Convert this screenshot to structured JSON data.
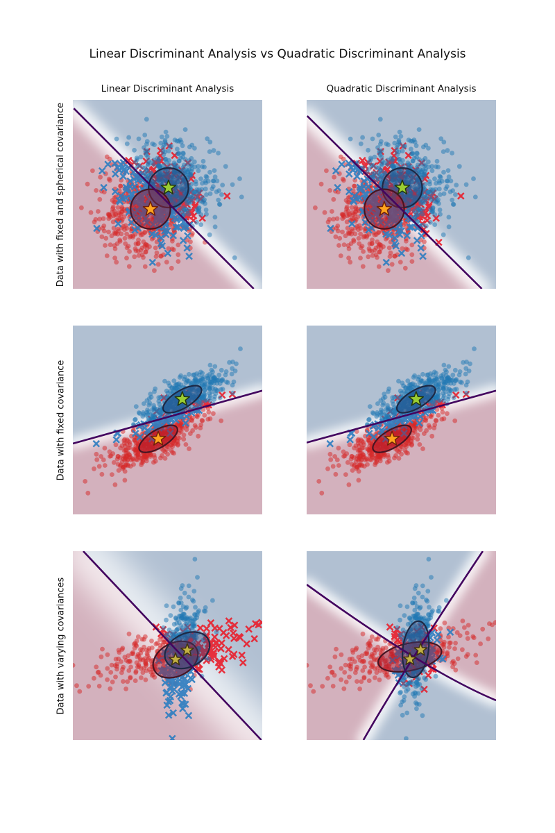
{
  "title": "Linear Discriminant Analysis vs Quadratic Discriminant Analysis",
  "columns": [
    {
      "label": "Linear Discriminant Analysis"
    },
    {
      "label": "Quadratic Discriminant Analysis"
    }
  ],
  "rows": [
    {
      "label": "Data with fixed and spherical covariance"
    },
    {
      "label": "Data with fixed covariance"
    },
    {
      "label": "Data with varying covariances"
    }
  ],
  "palette": {
    "background": "#ffffff",
    "region_blue": "#b1c0d2",
    "region_red": "#d3b1bd",
    "boundary_line": "#43055f",
    "dot_red": "#d62728",
    "dot_blue": "#1f77b4",
    "cross_red": "#e8212e",
    "cross_blue": "#2f7ec0",
    "ellipse_fill_red": "rgba(170,25,45,0.45)",
    "ellipse_fill_blue": "rgba(45,65,120,0.40)",
    "ellipse_edge_red": "#471523",
    "ellipse_edge_blue": "#1d2945",
    "star_green": "#9acd32",
    "star_orange": "#ffa51e",
    "star_khaki": "#c3b143",
    "star_edge_green": "#23380e",
    "star_edge_orange": "#70200a",
    "star_edge_khaki": "#403310"
  },
  "chart_data": [
    {
      "type": "scatter",
      "estimator": "Linear Discriminant Analysis",
      "dataset": "Data with fixed and spherical covariance",
      "classes": [
        {
          "label": "class-red",
          "cls": "red",
          "n": 560,
          "mean": [
            0.41,
            0.578
          ],
          "sd": [
            0.125,
            0.125
          ],
          "angle": 0,
          "seed": 101
        },
        {
          "label": "class-blue",
          "cls": "blue",
          "n": 560,
          "mean": [
            0.505,
            0.465
          ],
          "sd": [
            0.125,
            0.125
          ],
          "angle": 0,
          "seed": 202
        }
      ],
      "boundary": {
        "kind": "line",
        "band": 26,
        "blur": 8,
        "band_opacity": 0.85
      },
      "lines": [
        {
          "p0": [
            0.005,
            0.045
          ],
          "p1": [
            0.955,
            1.0
          ]
        }
      ],
      "red_polys": [
        [
          [
            0,
            0.045
          ],
          [
            0.955,
            1
          ],
          [
            0,
            1
          ]
        ]
      ],
      "ellipses": [
        {
          "cx": 0.505,
          "cy": 0.465,
          "rx": 0.105,
          "ry": 0.105,
          "angle": 0,
          "cls": "blue"
        },
        {
          "cx": 0.41,
          "cy": 0.578,
          "rx": 0.105,
          "ry": 0.105,
          "angle": 0,
          "cls": "red"
        }
      ],
      "stars": [
        {
          "x": 0.505,
          "y": 0.465,
          "color": "green",
          "size": 11
        },
        {
          "x": 0.41,
          "y": 0.578,
          "color": "orange",
          "size": 11
        }
      ]
    },
    {
      "type": "scatter",
      "estimator": "Quadratic Discriminant Analysis",
      "dataset": "Data with fixed and spherical covariance",
      "classes": [
        {
          "label": "class-red",
          "cls": "red",
          "n": 560,
          "mean": [
            0.41,
            0.578
          ],
          "sd": [
            0.125,
            0.125
          ],
          "angle": 0,
          "seed": 101
        },
        {
          "label": "class-blue",
          "cls": "blue",
          "n": 560,
          "mean": [
            0.505,
            0.465
          ],
          "sd": [
            0.125,
            0.125
          ],
          "angle": 0,
          "seed": 202
        }
      ],
      "boundary": {
        "kind": "line",
        "band": 26,
        "blur": 8,
        "band_opacity": 0.85
      },
      "lines": [
        {
          "p0": [
            0.003,
            0.085
          ],
          "p1": [
            0.925,
            1.0
          ]
        }
      ],
      "red_polys": [
        [
          [
            0,
            0.085
          ],
          [
            0.925,
            1
          ],
          [
            0,
            1
          ]
        ]
      ],
      "ellipses": [
        {
          "cx": 0.505,
          "cy": 0.465,
          "rx": 0.105,
          "ry": 0.105,
          "angle": 0,
          "cls": "blue"
        },
        {
          "cx": 0.41,
          "cy": 0.578,
          "rx": 0.105,
          "ry": 0.105,
          "angle": 0,
          "cls": "red"
        }
      ],
      "stars": [
        {
          "x": 0.505,
          "y": 0.465,
          "color": "green",
          "size": 11
        },
        {
          "x": 0.41,
          "y": 0.578,
          "color": "orange",
          "size": 11
        }
      ]
    },
    {
      "type": "scatter",
      "estimator": "Linear Discriminant Analysis",
      "dataset": "Data with fixed covariance",
      "classes": [
        {
          "label": "class-red",
          "cls": "red",
          "n": 480,
          "mean": [
            0.451,
            0.6
          ],
          "sd": [
            0.135,
            0.048
          ],
          "angle": -31,
          "seed": 303
        },
        {
          "label": "class-blue",
          "cls": "blue",
          "n": 470,
          "mean": [
            0.578,
            0.39
          ],
          "sd": [
            0.135,
            0.048
          ],
          "angle": -31,
          "seed": 404
        }
      ],
      "boundary": {
        "kind": "line",
        "band": 18,
        "blur": 7,
        "band_opacity": 0.85
      },
      "lines": [
        {
          "p0": [
            0.0,
            0.625
          ],
          "p1": [
            1.0,
            0.345
          ]
        }
      ],
      "red_polys": [
        [
          [
            0,
            0.625
          ],
          [
            1,
            0.345
          ],
          [
            1,
            1
          ],
          [
            0,
            1
          ]
        ]
      ],
      "ellipses": [
        {
          "cx": 0.578,
          "cy": 0.39,
          "rx": 0.115,
          "ry": 0.047,
          "angle": -31,
          "cls": "blue"
        },
        {
          "cx": 0.451,
          "cy": 0.6,
          "rx": 0.115,
          "ry": 0.047,
          "angle": -31,
          "cls": "red"
        }
      ],
      "stars": [
        {
          "x": 0.578,
          "y": 0.39,
          "color": "green",
          "size": 11
        },
        {
          "x": 0.451,
          "y": 0.6,
          "color": "orange",
          "size": 11
        }
      ]
    },
    {
      "type": "scatter",
      "estimator": "Quadratic Discriminant Analysis",
      "dataset": "Data with fixed covariance",
      "classes": [
        {
          "label": "class-red",
          "cls": "red",
          "n": 480,
          "mean": [
            0.451,
            0.6
          ],
          "sd": [
            0.135,
            0.048
          ],
          "angle": -31,
          "seed": 303
        },
        {
          "label": "class-blue",
          "cls": "blue",
          "n": 470,
          "mean": [
            0.578,
            0.39
          ],
          "sd": [
            0.135,
            0.048
          ],
          "angle": -31,
          "seed": 404
        }
      ],
      "boundary": {
        "kind": "line",
        "band": 18,
        "blur": 7,
        "band_opacity": 0.85
      },
      "lines": [
        {
          "p0": [
            0.0,
            0.62
          ],
          "p1": [
            1.0,
            0.345
          ]
        }
      ],
      "red_polys": [
        [
          [
            0,
            0.62
          ],
          [
            1,
            0.345
          ],
          [
            1,
            1
          ],
          [
            0,
            1
          ]
        ]
      ],
      "ellipses": [
        {
          "cx": 0.578,
          "cy": 0.39,
          "rx": 0.115,
          "ry": 0.047,
          "angle": -31,
          "cls": "blue"
        },
        {
          "cx": 0.451,
          "cy": 0.6,
          "rx": 0.115,
          "ry": 0.047,
          "angle": -31,
          "cls": "red"
        }
      ],
      "stars": [
        {
          "x": 0.578,
          "y": 0.39,
          "color": "green",
          "size": 11
        },
        {
          "x": 0.451,
          "y": 0.6,
          "color": "orange",
          "size": 11
        }
      ]
    },
    {
      "type": "scatter",
      "estimator": "Linear Discriminant Analysis",
      "dataset": "Data with varying covariances",
      "classes": [
        {
          "label": "class-red",
          "cls": "red",
          "n": 315,
          "mean": [
            0.5,
            0.56
          ],
          "sd": [
            0.205,
            0.062
          ],
          "angle": -13,
          "seed": 505
        },
        {
          "label": "class-blue",
          "cls": "blue",
          "n": 315,
          "mean": [
            0.585,
            0.5
          ],
          "sd": [
            0.052,
            0.155
          ],
          "angle": 5,
          "seed": 606
        }
      ],
      "boundary": {
        "kind": "line",
        "band": 64,
        "blur": 22,
        "band_opacity": 0.75
      },
      "lines": [
        {
          "p0": [
            0.055,
            0.0
          ],
          "p1": [
            0.995,
            1.0
          ]
        }
      ],
      "red_polys": [
        [
          [
            0.055,
            0
          ],
          [
            0.995,
            1
          ],
          [
            0,
            1
          ],
          [
            0,
            0
          ]
        ]
      ],
      "ellipses": [
        {
          "cx": 0.542,
          "cy": 0.574,
          "rx": 0.125,
          "ry": 0.088,
          "angle": -27,
          "cls": "red"
        },
        {
          "cx": 0.604,
          "cy": 0.525,
          "rx": 0.125,
          "ry": 0.088,
          "angle": -27,
          "cls": "blue"
        }
      ],
      "stars": [
        {
          "x": 0.542,
          "y": 0.574,
          "color": "khaki",
          "size": 9.5
        },
        {
          "x": 0.604,
          "y": 0.525,
          "color": "khaki",
          "size": 9.5
        }
      ]
    },
    {
      "type": "scatter",
      "estimator": "Quadratic Discriminant Analysis",
      "dataset": "Data with varying covariances",
      "classes": [
        {
          "label": "class-red",
          "cls": "red",
          "n": 315,
          "mean": [
            0.5,
            0.56
          ],
          "sd": [
            0.205,
            0.062
          ],
          "angle": -13,
          "seed": 505
        },
        {
          "label": "class-blue",
          "cls": "blue",
          "n": 315,
          "mean": [
            0.585,
            0.5
          ],
          "sd": [
            0.052,
            0.155
          ],
          "angle": 5,
          "seed": 606
        }
      ],
      "boundary": {
        "kind": "cross",
        "band": 20,
        "blur": 7,
        "band_opacity": 0.85
      },
      "lines": [
        {
          "p0": [
            0.93,
            0.0
          ],
          "ctrl": [
            0.517,
            0.62
          ],
          "p1": [
            0.3,
            1.0
          ]
        },
        {
          "p0": [
            0.0,
            0.177
          ],
          "ctrl": [
            0.632,
            0.636
          ],
          "p1": [
            1.0,
            0.79
          ]
        }
      ],
      "red_polys": [
        [
          [
            0,
            0.177
          ],
          [
            0.566,
            0.56
          ],
          [
            0.3,
            1
          ],
          [
            0,
            1
          ]
        ],
        [
          [
            0.93,
            0
          ],
          [
            0.566,
            0.56
          ],
          [
            1,
            0.79
          ],
          [
            1,
            0
          ]
        ]
      ],
      "ellipses": [
        {
          "cx": 0.545,
          "cy": 0.56,
          "rx": 0.17,
          "ry": 0.072,
          "angle": -12,
          "cls": "red"
        },
        {
          "cx": 0.576,
          "cy": 0.52,
          "rx": 0.068,
          "ry": 0.15,
          "angle": 7,
          "cls": "blue"
        }
      ],
      "stars": [
        {
          "x": 0.545,
          "y": 0.572,
          "color": "khaki",
          "size": 9.5
        },
        {
          "x": 0.602,
          "y": 0.523,
          "color": "khaki",
          "size": 9.5
        }
      ]
    }
  ]
}
